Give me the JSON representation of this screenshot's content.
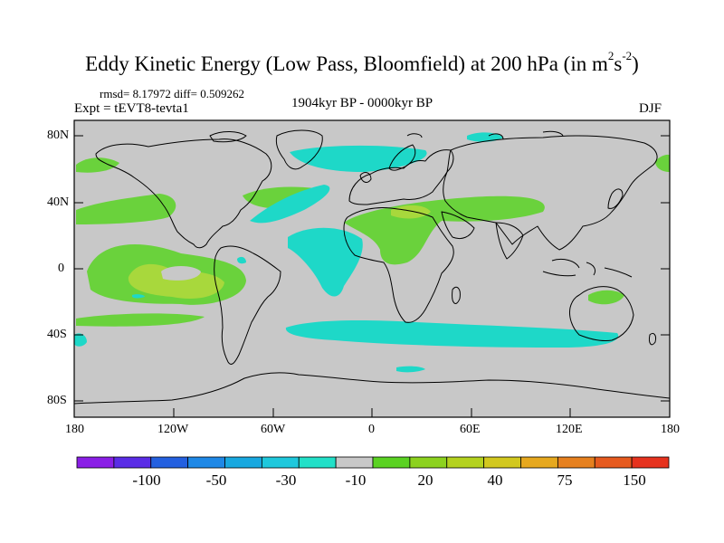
{
  "title": {
    "main": "Eddy Kinetic Energy (Low Pass, Bloomfield) at 200 hPa (in m",
    "sup1": "2",
    "mid": "s",
    "sup2": "-2",
    "end": ")"
  },
  "stats": "rmsd= 8.17972 diff= 0.509262",
  "experiment": "Expt = tEVT8-tevta1",
  "period": "1904kyr BP - 0000kyr BP",
  "season": "DJF",
  "axes": {
    "y_ticks": [
      "80N",
      "40N",
      "0",
      "40S",
      "80S"
    ],
    "x_ticks": [
      "180",
      "120W",
      "60W",
      "0",
      "60E",
      "120E",
      "180"
    ]
  },
  "colorbar": {
    "colors": [
      "#8a1ee6",
      "#5a2ce6",
      "#2460e0",
      "#1e88e6",
      "#18a8e0",
      "#1ec8dc",
      "#22e0c8",
      "#c8c8c8",
      "#5ad222",
      "#8cd21e",
      "#b4d21e",
      "#d2c81e",
      "#e6a81e",
      "#e6801e",
      "#e65a1e",
      "#e6321e"
    ],
    "labels": [
      "-100",
      "-50",
      "-30",
      "-10",
      "20",
      "40",
      "75",
      "150"
    ]
  },
  "legend_colors": {
    "positive_light": "#6ad23c",
    "positive_strong": "#a8d83c",
    "negative_light": "#1ed8c8",
    "background": "#c8c8c8"
  }
}
